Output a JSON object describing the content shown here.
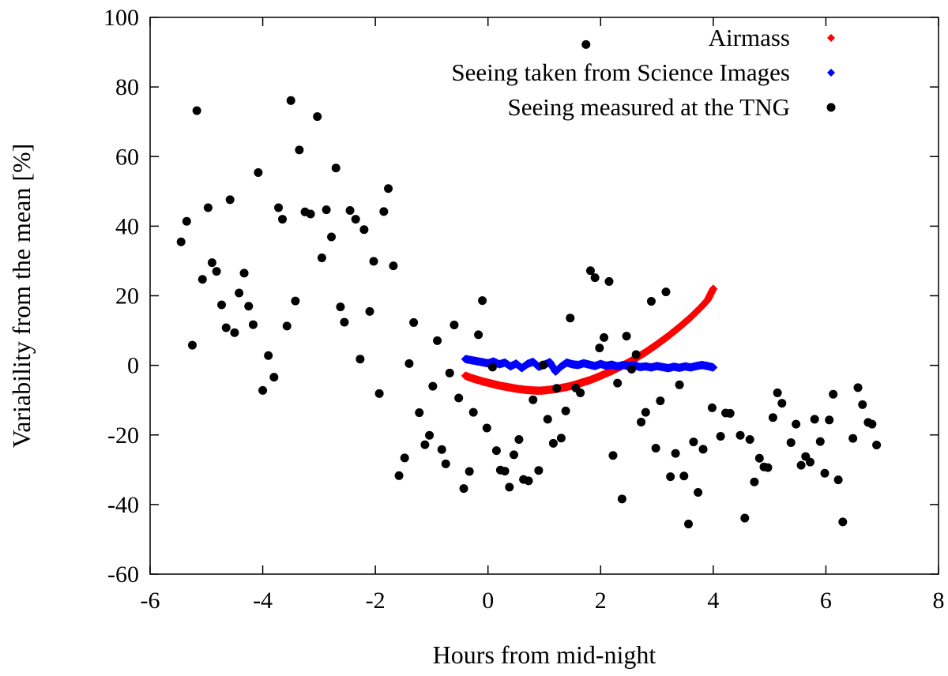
{
  "chart_data": {
    "type": "scatter",
    "title": "",
    "xlabel": "Hours from mid-night",
    "ylabel": "Variability from the mean [%]",
    "xlim": [
      -6,
      8
    ],
    "ylim": [
      -60,
      100
    ],
    "xticks": [
      -6,
      -4,
      -2,
      0,
      2,
      4,
      6,
      8
    ],
    "yticks": [
      -60,
      -40,
      -20,
      0,
      20,
      40,
      60,
      80,
      100
    ],
    "grid": false,
    "legend_position": "top-right",
    "series": [
      {
        "name": "Airmass",
        "color": "#ff0000",
        "marker": "diamond",
        "points": [
          [
            -0.4,
            -3.0
          ],
          [
            -0.3,
            -3.6
          ],
          [
            -0.2,
            -4.1
          ],
          [
            -0.1,
            -4.6
          ],
          [
            0.0,
            -5.0
          ],
          [
            0.1,
            -5.4
          ],
          [
            0.2,
            -5.8
          ],
          [
            0.3,
            -6.1
          ],
          [
            0.4,
            -6.4
          ],
          [
            0.5,
            -6.7
          ],
          [
            0.6,
            -6.9
          ],
          [
            0.7,
            -7.1
          ],
          [
            0.8,
            -7.2
          ],
          [
            0.9,
            -7.3
          ],
          [
            1.0,
            -7.2
          ],
          [
            1.1,
            -7.0
          ],
          [
            1.2,
            -6.8
          ],
          [
            1.3,
            -6.5
          ],
          [
            1.4,
            -6.2
          ],
          [
            1.5,
            -5.8
          ],
          [
            1.6,
            -5.3
          ],
          [
            1.7,
            -4.8
          ],
          [
            1.8,
            -4.3
          ],
          [
            1.9,
            -3.7
          ],
          [
            2.0,
            -3.0
          ],
          [
            2.1,
            -2.3
          ],
          [
            2.2,
            -1.6
          ],
          [
            2.3,
            -0.8
          ],
          [
            2.4,
            0.0
          ],
          [
            2.5,
            0.9
          ],
          [
            2.6,
            1.8
          ],
          [
            2.7,
            2.8
          ],
          [
            2.8,
            3.8
          ],
          [
            2.9,
            4.9
          ],
          [
            3.0,
            6.0
          ],
          [
            3.1,
            7.2
          ],
          [
            3.2,
            8.4
          ],
          [
            3.3,
            9.7
          ],
          [
            3.4,
            11.0
          ],
          [
            3.5,
            12.4
          ],
          [
            3.6,
            13.8
          ],
          [
            3.7,
            15.4
          ],
          [
            3.8,
            17.0
          ],
          [
            3.9,
            18.8
          ],
          [
            4.0,
            22.0
          ]
        ]
      },
      {
        "name": "Seeing taken from Science Images",
        "color": "#0000ff",
        "marker": "diamond",
        "points": [
          [
            -0.4,
            1.8
          ],
          [
            -0.3,
            1.5
          ],
          [
            -0.2,
            1.2
          ],
          [
            -0.1,
            0.9
          ],
          [
            0.0,
            0.6
          ],
          [
            0.1,
            1.1
          ],
          [
            0.2,
            0.3
          ],
          [
            0.3,
            0.8
          ],
          [
            0.4,
            -0.3
          ],
          [
            0.5,
            0.5
          ],
          [
            0.6,
            -0.8
          ],
          [
            0.7,
            0.4
          ],
          [
            0.8,
            1.0
          ],
          [
            0.9,
            -0.4
          ],
          [
            1.0,
            0.2
          ],
          [
            1.1,
            0.9
          ],
          [
            1.2,
            -1.8
          ],
          [
            1.3,
            -0.3
          ],
          [
            1.4,
            0.8
          ],
          [
            1.5,
            0.3
          ],
          [
            1.6,
            0.1
          ],
          [
            1.7,
            0.6
          ],
          [
            1.8,
            0.2
          ],
          [
            1.9,
            -0.2
          ],
          [
            2.0,
            0.4
          ],
          [
            2.1,
            -0.1
          ],
          [
            2.2,
            0.2
          ],
          [
            2.3,
            -0.3
          ],
          [
            2.4,
            0.1
          ],
          [
            2.5,
            -0.2
          ],
          [
            2.6,
            0.0
          ],
          [
            2.7,
            -0.5
          ],
          [
            2.8,
            -0.3
          ],
          [
            2.9,
            -0.6
          ],
          [
            3.0,
            -0.2
          ],
          [
            3.1,
            -0.5
          ],
          [
            3.2,
            -0.8
          ],
          [
            3.3,
            -0.4
          ],
          [
            3.4,
            -0.7
          ],
          [
            3.5,
            -0.3
          ],
          [
            3.6,
            -0.6
          ],
          [
            3.7,
            -0.2
          ],
          [
            3.8,
            0.1
          ],
          [
            3.9,
            -0.2
          ],
          [
            4.0,
            -0.6
          ]
        ]
      },
      {
        "name": "Seeing measured at the TNG",
        "color": "#000000",
        "marker": "circle",
        "points": [
          [
            -5.45,
            35.5
          ],
          [
            -5.35,
            41.4
          ],
          [
            -5.25,
            5.8
          ],
          [
            -5.17,
            73.2
          ],
          [
            -5.07,
            24.7
          ],
          [
            -4.97,
            45.3
          ],
          [
            -4.9,
            29.5
          ],
          [
            -4.82,
            27.0
          ],
          [
            -4.73,
            17.4
          ],
          [
            -4.65,
            10.8
          ],
          [
            -4.58,
            47.6
          ],
          [
            -4.5,
            9.4
          ],
          [
            -4.42,
            20.8
          ],
          [
            -4.33,
            26.5
          ],
          [
            -4.25,
            17.0
          ],
          [
            -4.17,
            11.7
          ],
          [
            -4.08,
            55.4
          ],
          [
            -4.0,
            -7.2
          ],
          [
            -3.9,
            2.8
          ],
          [
            -3.8,
            -3.4
          ],
          [
            -3.72,
            45.3
          ],
          [
            -3.65,
            42.0
          ],
          [
            -3.57,
            11.3
          ],
          [
            -3.5,
            76.1
          ],
          [
            -3.42,
            18.5
          ],
          [
            -3.35,
            61.9
          ],
          [
            -3.25,
            44.1
          ],
          [
            -3.15,
            43.5
          ],
          [
            -3.03,
            71.5
          ],
          [
            -2.95,
            30.9
          ],
          [
            -2.87,
            44.7
          ],
          [
            -2.78,
            36.9
          ],
          [
            -2.7,
            56.7
          ],
          [
            -2.62,
            16.8
          ],
          [
            -2.55,
            12.4
          ],
          [
            -2.45,
            44.5
          ],
          [
            -2.35,
            42.0
          ],
          [
            -2.27,
            1.8
          ],
          [
            -2.2,
            39.0
          ],
          [
            -2.1,
            15.5
          ],
          [
            -2.03,
            29.9
          ],
          [
            -1.93,
            -8.1
          ],
          [
            -1.85,
            44.2
          ],
          [
            -1.77,
            50.8
          ],
          [
            -1.68,
            28.6
          ],
          [
            -1.58,
            -31.7
          ],
          [
            -1.48,
            -26.6
          ],
          [
            -1.4,
            0.5
          ],
          [
            -1.32,
            12.3
          ],
          [
            -1.22,
            -13.6
          ],
          [
            -1.12,
            -22.8
          ],
          [
            -1.04,
            -20.1
          ],
          [
            -0.98,
            -6.0
          ],
          [
            -0.9,
            7.1
          ],
          [
            -0.82,
            -24.2
          ],
          [
            -0.75,
            -28.3
          ],
          [
            -0.68,
            -2.2
          ],
          [
            -0.6,
            11.6
          ],
          [
            -0.52,
            -9.4
          ],
          [
            -0.43,
            -35.4
          ],
          [
            -0.33,
            -30.5
          ],
          [
            -0.26,
            -13.5
          ],
          [
            -0.17,
            8.8
          ],
          [
            -0.1,
            18.6
          ],
          [
            -0.02,
            -18.0
          ],
          [
            0.08,
            -0.5
          ],
          [
            0.15,
            -24.5
          ],
          [
            0.22,
            -30.1
          ],
          [
            0.3,
            -30.4
          ],
          [
            0.38,
            -35.0
          ],
          [
            0.46,
            -25.7
          ],
          [
            0.55,
            -21.3
          ],
          [
            0.63,
            -32.8
          ],
          [
            0.72,
            -33.2
          ],
          [
            0.8,
            -9.9
          ],
          [
            0.9,
            -30.2
          ],
          [
            0.98,
            0.1
          ],
          [
            1.06,
            -15.5
          ],
          [
            1.16,
            -22.4
          ],
          [
            1.22,
            -6.6
          ],
          [
            1.3,
            -20.9
          ],
          [
            1.38,
            -13.1
          ],
          [
            1.46,
            13.6
          ],
          [
            1.56,
            -6.5
          ],
          [
            1.64,
            -7.9
          ],
          [
            1.74,
            92.2
          ],
          [
            1.82,
            27.2
          ],
          [
            1.9,
            25.2
          ],
          [
            1.98,
            5.0
          ],
          [
            2.06,
            8.0
          ],
          [
            2.15,
            24.1
          ],
          [
            2.22,
            -25.9
          ],
          [
            2.3,
            -5.1
          ],
          [
            2.38,
            -38.4
          ],
          [
            2.46,
            8.4
          ],
          [
            2.55,
            -1.1
          ],
          [
            2.63,
            3.1
          ],
          [
            2.72,
            -16.3
          ],
          [
            2.8,
            -13.5
          ],
          [
            2.9,
            18.4
          ],
          [
            2.98,
            -23.8
          ],
          [
            3.06,
            -10.2
          ],
          [
            3.16,
            21.1
          ],
          [
            3.24,
            -32.0
          ],
          [
            3.33,
            -25.3
          ],
          [
            3.4,
            -5.6
          ],
          [
            3.48,
            -31.8
          ],
          [
            3.56,
            -45.6
          ],
          [
            3.65,
            -22.0
          ],
          [
            3.73,
            -36.5
          ],
          [
            3.82,
            -24.1
          ],
          [
            3.98,
            -12.2
          ],
          [
            4.13,
            -20.4
          ],
          [
            4.22,
            -13.7
          ],
          [
            4.3,
            -13.8
          ],
          [
            4.48,
            -20.1
          ],
          [
            4.56,
            -43.9
          ],
          [
            4.65,
            -21.3
          ],
          [
            4.73,
            -33.5
          ],
          [
            4.82,
            -26.7
          ],
          [
            4.9,
            -29.2
          ],
          [
            4.97,
            -29.4
          ],
          [
            5.06,
            -15.0
          ],
          [
            5.14,
            -7.9
          ],
          [
            5.22,
            -10.9
          ],
          [
            5.38,
            -22.2
          ],
          [
            5.47,
            -16.9
          ],
          [
            5.56,
            -28.7
          ],
          [
            5.64,
            -26.2
          ],
          [
            5.72,
            -27.8
          ],
          [
            5.8,
            -15.5
          ],
          [
            5.9,
            -21.9
          ],
          [
            5.98,
            -31.0
          ],
          [
            6.06,
            -15.7
          ],
          [
            6.13,
            -8.3
          ],
          [
            6.22,
            -32.9
          ],
          [
            6.3,
            -45.0
          ],
          [
            6.48,
            -21.0
          ],
          [
            6.57,
            -6.4
          ],
          [
            6.65,
            -11.3
          ],
          [
            6.75,
            -16.4
          ],
          [
            6.82,
            -16.9
          ],
          [
            6.9,
            -22.9
          ]
        ]
      }
    ]
  }
}
